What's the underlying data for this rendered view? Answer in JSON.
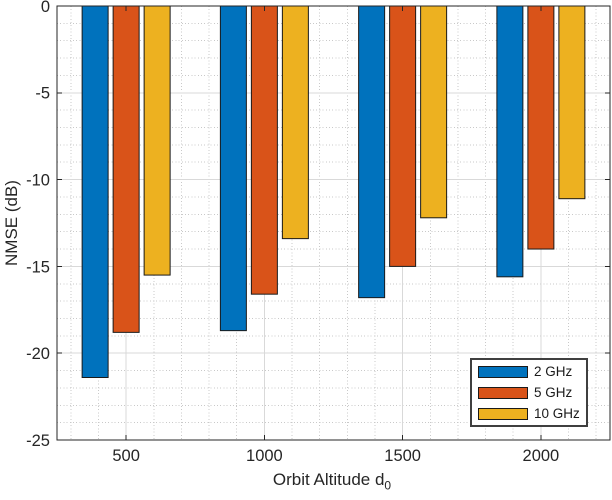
{
  "chart_data": {
    "type": "bar",
    "title": "",
    "categories": [
      "500",
      "1000",
      "1500",
      "2000"
    ],
    "series": [
      {
        "name": "2 GHz",
        "color": "#0072BD",
        "values": [
          -21.4,
          -18.7,
          -16.8,
          -15.6
        ]
      },
      {
        "name": "5 GHz",
        "color": "#D95319",
        "values": [
          -18.8,
          -16.6,
          -15.0,
          -14.0
        ]
      },
      {
        "name": "10 GHz",
        "color": "#EDB120",
        "values": [
          -15.5,
          -13.4,
          -12.2,
          -11.1
        ]
      }
    ],
    "xlabel": "Orbit Altitude d_0",
    "xlabel_main": "Orbit Altitude d",
    "xlabel_sub": "0",
    "ylabel": "NMSE (dB)",
    "ylim": [
      -25,
      0
    ],
    "yticks": [
      0,
      -5,
      -10,
      -15,
      -20,
      -25
    ],
    "y_minor_step": 1,
    "x_minor_per_major": 5,
    "grid": true,
    "minor_grid": true,
    "legend_position": "inside-bottom-right",
    "colors": {
      "axis": "#262626",
      "text": "#262626",
      "bar_edge": "#1a1a1a",
      "grid_major": "#d9d9d9",
      "grid_minor": "#c9c9c9",
      "legend_border": "#3f3f3f",
      "background": "#ffffff"
    }
  }
}
